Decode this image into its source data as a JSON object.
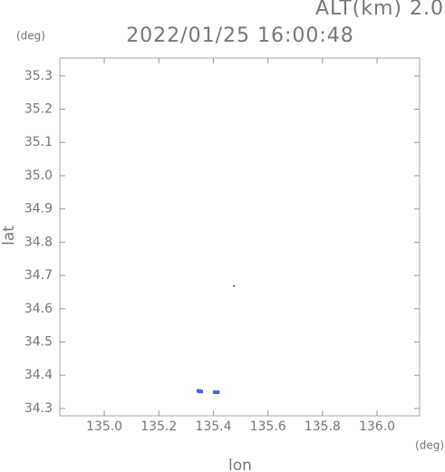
{
  "chart_data": {
    "type": "scatter",
    "title": "2022/01/25 16:00:48",
    "subtitle": "ALT(km) 2.0",
    "y_unit": "(deg)",
    "x_unit": "(deg)",
    "xlabel": "lon",
    "ylabel": "lat",
    "xlim": [
      134.837,
      136.156
    ],
    "ylim": [
      34.278,
      35.354
    ],
    "xticks": [
      {
        "value": 135,
        "label": "135.0"
      },
      135.2,
      135.4,
      135.6,
      135.8,
      {
        "value": 136,
        "label": "136.0"
      }
    ],
    "yticks": [
      34.3,
      34.4,
      34.5,
      34.6,
      34.7,
      34.8,
      34.9,
      {
        "value": 35,
        "label": "35.0"
      },
      35.1,
      35.2,
      35.3
    ],
    "series": [
      {
        "color": "#4466ee",
        "x": [
          135.345,
          135.352,
          135.405,
          135.413
        ],
        "values": [
          34.353,
          34.351,
          34.349,
          34.349
        ]
      },
      {
        "color": "#000000",
        "x": [
          135.48
        ],
        "values": [
          34.665
        ]
      }
    ]
  }
}
